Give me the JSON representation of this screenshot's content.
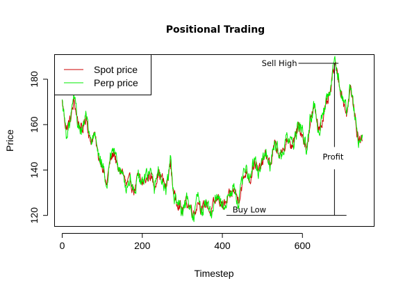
{
  "chart_data": {
    "type": "line",
    "title": "Positional Trading",
    "xlabel": "Timestep",
    "ylabel": "Price",
    "xlim": [
      -20,
      780
    ],
    "ylim": [
      115,
      191
    ],
    "x_ticks": [
      0,
      200,
      400,
      600
    ],
    "y_ticks": [
      120,
      140,
      160,
      180
    ],
    "legend_position": "top-left",
    "grid": false,
    "series": [
      {
        "name": "Spot price",
        "color": "#cc0000",
        "keypoints_x": [
          0,
          10,
          20,
          30,
          40,
          50,
          60,
          70,
          80,
          90,
          100,
          110,
          120,
          130,
          140,
          150,
          160,
          170,
          180,
          190,
          200,
          210,
          220,
          230,
          240,
          250,
          260,
          270,
          280,
          290,
          300,
          310,
          320,
          330,
          340,
          350,
          360,
          370,
          380,
          390,
          400,
          410,
          420,
          430,
          440,
          450,
          460,
          470,
          480,
          490,
          500,
          510,
          520,
          530,
          540,
          550,
          560,
          570,
          580,
          590,
          600,
          610,
          620,
          630,
          640,
          650,
          660,
          670,
          680,
          690,
          700,
          710,
          720,
          730,
          740,
          750
        ],
        "keypoints_y": [
          170,
          158,
          162,
          170,
          161,
          157,
          164,
          152,
          156,
          146,
          143,
          133,
          144,
          148,
          139,
          140,
          133,
          135,
          131,
          137,
          134,
          136,
          138,
          133,
          139,
          136,
          132,
          143,
          128,
          126,
          122,
          126,
          124,
          121,
          127,
          122,
          126,
          121,
          125,
          128,
          124,
          125,
          129,
          131,
          127,
          134,
          140,
          136,
          144,
          139,
          143,
          147,
          142,
          151,
          148,
          146,
          154,
          150,
          153,
          159,
          156,
          149,
          162,
          167,
          159,
          162,
          168,
          174,
          187,
          180,
          172,
          165,
          176,
          165,
          153,
          154
        ],
        "volatility": 4.2,
        "seed": 1234
      },
      {
        "name": "Perp price",
        "color": "#00ee00",
        "keypoints_x": [
          0,
          10,
          20,
          30,
          40,
          50,
          60,
          70,
          80,
          90,
          100,
          110,
          120,
          130,
          140,
          150,
          160,
          170,
          180,
          190,
          200,
          210,
          220,
          230,
          240,
          250,
          260,
          270,
          280,
          290,
          300,
          310,
          320,
          330,
          340,
          350,
          360,
          370,
          380,
          390,
          400,
          410,
          420,
          430,
          440,
          450,
          460,
          470,
          480,
          490,
          500,
          510,
          520,
          530,
          540,
          550,
          560,
          570,
          580,
          590,
          600,
          610,
          620,
          630,
          640,
          650,
          660,
          670,
          680,
          690,
          700,
          710,
          720,
          730,
          740,
          750
        ],
        "keypoints_y": [
          171,
          156,
          161,
          172,
          160,
          156,
          165,
          151,
          157,
          145,
          144,
          131,
          145,
          149,
          138,
          141,
          131,
          136,
          130,
          138,
          133,
          137,
          139,
          132,
          140,
          135,
          131,
          144,
          127,
          125,
          121,
          127,
          123,
          120,
          128,
          121,
          127,
          120,
          126,
          129,
          123,
          126,
          130,
          132,
          126,
          135,
          141,
          137,
          145,
          138,
          144,
          148,
          141,
          152,
          149,
          145,
          155,
          151,
          152,
          160,
          157,
          148,
          163,
          168,
          158,
          163,
          169,
          175,
          188,
          181,
          171,
          166,
          177,
          166,
          152,
          155
        ],
        "volatility": 5.2,
        "seed": 98765
      }
    ],
    "annotations": [
      {
        "id": "sell",
        "text": "Sell High",
        "x_start": 590,
        "x_end": 690,
        "y": 187
      },
      {
        "id": "buy",
        "text": "Buy Low",
        "x_start": 410,
        "x_end": 710,
        "y": 120
      },
      {
        "id": "profit",
        "text": "Profit",
        "x": 680,
        "y_label": 144,
        "y_from": 120,
        "y_to": 187
      }
    ]
  }
}
